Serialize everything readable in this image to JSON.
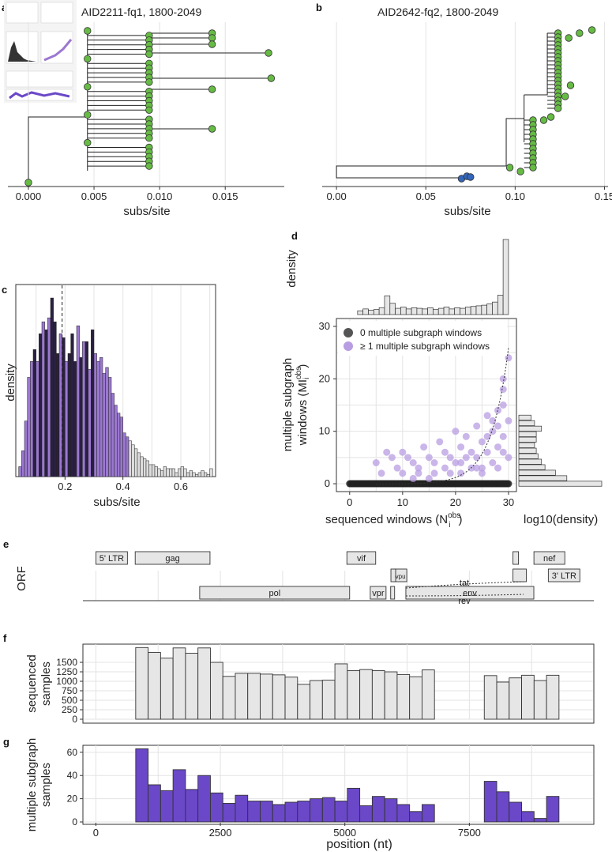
{
  "panel_labels": [
    "a",
    "b",
    "c",
    "d",
    "e",
    "f",
    "g"
  ],
  "colors": {
    "green": "#66bb44",
    "blue": "#3366bb",
    "purple_dark": "#2a2040",
    "purple": "#9b78d0",
    "light_purple": "#b89de2",
    "black_dot": "#222222",
    "bar_grey": "#e6e6e6",
    "bar_purple": "#6a48c8"
  },
  "chart_data": [
    {
      "id": "a",
      "type": "scatter",
      "title": "AID2211-fq1, 1800-2049",
      "xlabel": "subs/site",
      "x_ticks": [
        "0.000",
        "0.005",
        "0.010",
        "0.015"
      ],
      "xlim": [
        -0.0006,
        0.0195
      ],
      "tips": [
        0.0,
        0.0045,
        0.0045,
        0.0045,
        0.0045,
        0.0045,
        0.0092,
        0.0092,
        0.0092,
        0.0092,
        0.0092,
        0.0092,
        0.0092,
        0.0092,
        0.0092,
        0.0092,
        0.0092,
        0.0092,
        0.0092,
        0.0092,
        0.0092,
        0.0092,
        0.0092,
        0.0092,
        0.0092,
        0.0092,
        0.0092,
        0.0092,
        0.0092,
        0.0092,
        0.0092,
        0.0092,
        0.0092,
        0.0092,
        0.0092,
        0.0092,
        0.0092,
        0.0092,
        0.014,
        0.014,
        0.014,
        0.0183,
        0.0185,
        0.014,
        0.014
      ]
    },
    {
      "id": "b",
      "type": "scatter",
      "title": "AID2642-fq2, 1800-2049",
      "xlabel": "subs/site",
      "x_ticks": [
        "0.00",
        "0.05",
        "0.10",
        "0.15"
      ],
      "xlim": [
        -0.008,
        0.152
      ],
      "green_tips": [
        0.103,
        0.097,
        0.105,
        0.108,
        0.11,
        0.112,
        0.114,
        0.116,
        0.11,
        0.108,
        0.112,
        0.115,
        0.118,
        0.12,
        0.122,
        0.124,
        0.126,
        0.128,
        0.125,
        0.123,
        0.13,
        0.128,
        0.136,
        0.143
      ],
      "blue_tips": [
        0.07,
        0.073,
        0.075
      ]
    },
    {
      "id": "c",
      "type": "bar",
      "ylabel": "density",
      "xlabel": "subs/site",
      "x_ticks": [
        "0.2",
        "0.4",
        "0.6"
      ],
      "xlim": [
        0.03,
        0.72
      ],
      "dashed_line_x": 0.19,
      "bins_start": 0.04,
      "bin_width": 0.01,
      "values": [
        5,
        13,
        28,
        50,
        58,
        64,
        58,
        72,
        78,
        74,
        80,
        90,
        78,
        62,
        72,
        70,
        58,
        62,
        72,
        58,
        76,
        60,
        68,
        68,
        54,
        74,
        62,
        58,
        60,
        52,
        55,
        50,
        42,
        36,
        32,
        30,
        22,
        20,
        18,
        16,
        14,
        12,
        10,
        9,
        8,
        6,
        6,
        5,
        4,
        3,
        5,
        4,
        4,
        4,
        2,
        4,
        5,
        4,
        2,
        3,
        2,
        1,
        2,
        3,
        2,
        1,
        4
      ]
    },
    {
      "id": "d",
      "type": "scatter",
      "xlabel": "sequenced windows (N",
      "xlabel_sup": "obs",
      "xlabel_sub": "i",
      "xlabel_close": ")",
      "ylabel_line1": "multiple subgraph",
      "ylabel_line2": "windows (MI",
      "ylabel_sup": "obs",
      "ylabel_sub": "i",
      "ylabel_close": ")",
      "top_hist_label": "density",
      "side_hist_label": "log10(density)",
      "x_ticks": [
        "0",
        "10",
        "20",
        "30"
      ],
      "y_ticks": [
        "0",
        "10",
        "20",
        "30"
      ],
      "xlim": [
        -2.5,
        31.5
      ],
      "ylim": [
        -1.5,
        31.5
      ],
      "legend": [
        {
          "label": "0 multiple subgraph windows",
          "color": "#555555"
        },
        {
          "label": "≥ 1 multiple subgraph windows",
          "color": "#b89de2"
        }
      ],
      "top_hist": [
        12,
        18,
        14,
        16,
        22,
        60,
        36,
        20,
        24,
        18,
        22,
        20,
        18,
        22,
        16,
        20,
        24,
        18,
        22,
        20,
        24,
        26,
        28,
        30,
        34,
        40,
        62,
        240
      ],
      "side_hist": [
        95,
        55,
        42,
        30,
        26,
        22,
        20,
        18,
        20,
        20,
        26,
        18,
        14
      ],
      "purple_points": [
        [
          5,
          4
        ],
        [
          6,
          2
        ],
        [
          7,
          6
        ],
        [
          8,
          5
        ],
        [
          9,
          3
        ],
        [
          10,
          6
        ],
        [
          10,
          2
        ],
        [
          11,
          5
        ],
        [
          12,
          4
        ],
        [
          13,
          3
        ],
        [
          14,
          7
        ],
        [
          15,
          5
        ],
        [
          16,
          2
        ],
        [
          17,
          8
        ],
        [
          18,
          3
        ],
        [
          18,
          6
        ],
        [
          19,
          5
        ],
        [
          20,
          4
        ],
        [
          20,
          10
        ],
        [
          21,
          7
        ],
        [
          21,
          2
        ],
        [
          22,
          9
        ],
        [
          23,
          6
        ],
        [
          23,
          3
        ],
        [
          24,
          5
        ],
        [
          24,
          11
        ],
        [
          25,
          8
        ],
        [
          25,
          3
        ],
        [
          26,
          6
        ],
        [
          26,
          13
        ],
        [
          27,
          4
        ],
        [
          27,
          10
        ],
        [
          27,
          12
        ],
        [
          28,
          7
        ],
        [
          28,
          14
        ],
        [
          28,
          3
        ],
        [
          29,
          6
        ],
        [
          29,
          9
        ],
        [
          29,
          15
        ],
        [
          29,
          18
        ],
        [
          30,
          24
        ],
        [
          30,
          12
        ],
        [
          30,
          5
        ],
        [
          29,
          20
        ],
        [
          28,
          11
        ],
        [
          26,
          9
        ],
        [
          24,
          3
        ],
        [
          22,
          5
        ],
        [
          25,
          2
        ],
        [
          19,
          2
        ],
        [
          15,
          1
        ],
        [
          12,
          1
        ],
        [
          13,
          2
        ],
        [
          16,
          4
        ],
        [
          21,
          4
        ]
      ]
    },
    {
      "id": "e",
      "type": "table",
      "ylabel": "ORF",
      "genes": [
        {
          "name": "5' LTR",
          "start": 1,
          "end": 634,
          "row": 0
        },
        {
          "name": "gag",
          "start": 790,
          "end": 2292,
          "row": 0
        },
        {
          "name": "vif",
          "start": 5041,
          "end": 5619,
          "row": 0
        },
        {
          "name": "tat",
          "start": 8379,
          "end": 8469,
          "row": 0
        },
        {
          "name": "nef",
          "start": 8797,
          "end": 9417,
          "row": 0
        },
        {
          "name": "vpu",
          "start": 6062,
          "end": 6310,
          "row": 1
        },
        {
          "name": "rev",
          "start": 8379,
          "end": 8653,
          "row": 1
        },
        {
          "name": "3' LTR",
          "start": 9086,
          "end": 9719,
          "row": 1
        },
        {
          "name": "pol",
          "start": 2085,
          "end": 5096,
          "row": 2
        },
        {
          "name": "vpr",
          "start": 5559,
          "end": 5850,
          "row": 2
        },
        {
          "name": "env",
          "start": 6225,
          "end": 8795,
          "row": 2
        }
      ],
      "splice_labels": [
        "tat",
        "rev"
      ]
    },
    {
      "id": "f",
      "type": "bar",
      "ylabel_line1": "sequenced",
      "ylabel_line2": "samples",
      "y_ticks": [
        "0",
        "250",
        "500",
        "750",
        "1000",
        "1250",
        "1500"
      ],
      "ylim": [
        0,
        1980
      ],
      "bin_width": 250,
      "bars": [
        [
          800,
          1890
        ],
        [
          1050,
          1760
        ],
        [
          1300,
          1610
        ],
        [
          1550,
          1880
        ],
        [
          1800,
          1740
        ],
        [
          2050,
          1880
        ],
        [
          2300,
          1500
        ],
        [
          2550,
          1130
        ],
        [
          2800,
          1210
        ],
        [
          3050,
          1210
        ],
        [
          3300,
          1190
        ],
        [
          3550,
          1170
        ],
        [
          3800,
          1110
        ],
        [
          4050,
          920
        ],
        [
          4300,
          1020
        ],
        [
          4550,
          1030
        ],
        [
          4800,
          1460
        ],
        [
          5050,
          1280
        ],
        [
          5300,
          1310
        ],
        [
          5550,
          1280
        ],
        [
          5800,
          1250
        ],
        [
          6050,
          1180
        ],
        [
          6300,
          1120
        ],
        [
          6550,
          1300
        ],
        [
          7800,
          1150
        ],
        [
          8050,
          980
        ],
        [
          8300,
          1090
        ],
        [
          8550,
          1160
        ],
        [
          8800,
          1020
        ],
        [
          9050,
          1160
        ]
      ]
    },
    {
      "id": "g",
      "type": "bar",
      "ylabel_line1": "multiple subgraph",
      "ylabel_line2": "samples",
      "xlabel": "position (nt)",
      "x_ticks": [
        "0",
        "2500",
        "5000",
        "7500"
      ],
      "y_ticks": [
        "0",
        "20",
        "40",
        "60"
      ],
      "ylim": [
        0,
        66
      ],
      "xlim": [
        -260,
        10000
      ],
      "bin_width": 250,
      "bars": [
        [
          800,
          63
        ],
        [
          1050,
          32
        ],
        [
          1300,
          27
        ],
        [
          1550,
          45
        ],
        [
          1800,
          28
        ],
        [
          2050,
          40
        ],
        [
          2300,
          25
        ],
        [
          2550,
          16
        ],
        [
          2800,
          23
        ],
        [
          3050,
          18
        ],
        [
          3300,
          18
        ],
        [
          3550,
          15
        ],
        [
          3800,
          17
        ],
        [
          4050,
          18
        ],
        [
          4300,
          20
        ],
        [
          4550,
          21
        ],
        [
          4800,
          18
        ],
        [
          5050,
          29
        ],
        [
          5300,
          14
        ],
        [
          5550,
          22
        ],
        [
          5800,
          20
        ],
        [
          6050,
          15
        ],
        [
          6300,
          9
        ],
        [
          6550,
          15
        ],
        [
          7800,
          35
        ],
        [
          8050,
          26
        ],
        [
          8300,
          17
        ],
        [
          8550,
          9
        ],
        [
          8800,
          3
        ],
        [
          9050,
          22
        ]
      ]
    }
  ]
}
